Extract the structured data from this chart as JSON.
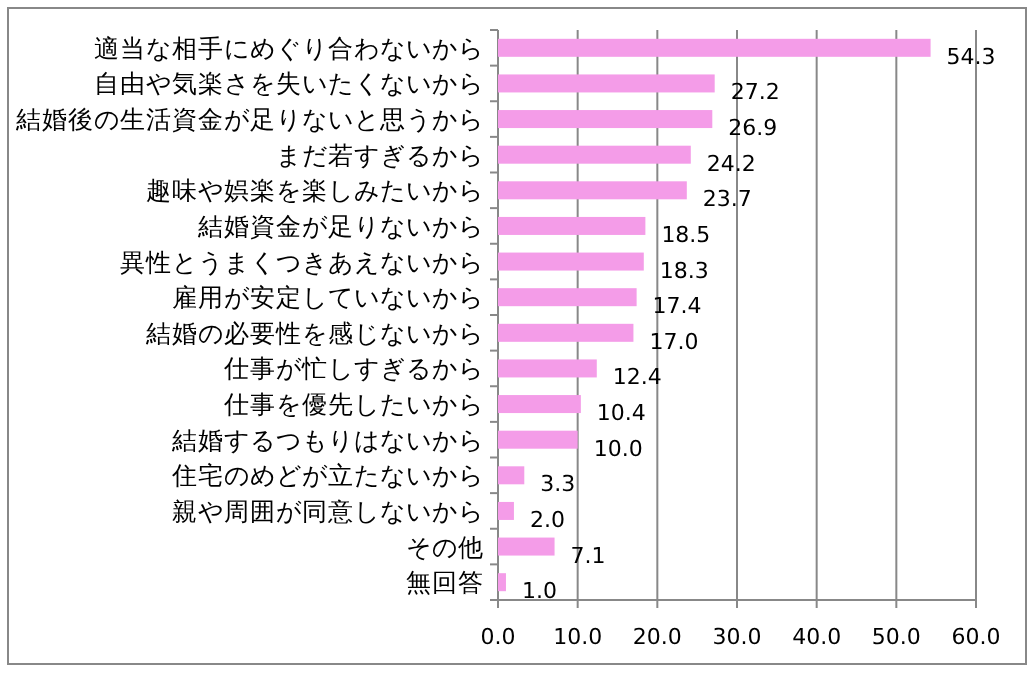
{
  "chart_data": {
    "type": "bar",
    "orientation": "horizontal",
    "categories": [
      "適当な相手にめぐり合わないから",
      "自由や気楽さを失いたくないから",
      "結婚後の生活資金が足りないと思うから",
      "まだ若すぎるから",
      "趣味や娯楽を楽しみたいから",
      "結婚資金が足りないから",
      "異性とうまくつきあえないから",
      "雇用が安定していないから",
      "結婚の必要性を感じないから",
      "仕事が忙しすぎるから",
      "仕事を優先したいから",
      "結婚するつもりはないから",
      "住宅のめどが立たないから",
      "親や周囲が同意しないから",
      "その他",
      "無回答"
    ],
    "values": [
      54.3,
      27.2,
      26.9,
      24.2,
      23.7,
      18.5,
      18.3,
      17.4,
      17.0,
      12.4,
      10.4,
      10.0,
      3.3,
      2.0,
      7.1,
      1.0
    ],
    "value_labels": [
      "54.3",
      "27.2",
      "26.9",
      "24.2",
      "23.7",
      "18.5",
      "18.3",
      "17.4",
      "17.0",
      "12.4",
      "10.4",
      "10.0",
      "3.3",
      "2.0",
      "7.1",
      "1.0"
    ],
    "color": "#f49ce8",
    "xlim": [
      0,
      60
    ],
    "xticks": [
      {
        "value": 0,
        "label": "0.0"
      },
      {
        "value": 10,
        "label": "10.0"
      },
      {
        "value": 20,
        "label": "20.0"
      },
      {
        "value": 30,
        "label": "30.0"
      },
      {
        "value": 40,
        "label": "40.0"
      },
      {
        "value": 50,
        "label": "50.0"
      },
      {
        "value": 60,
        "label": "60.0"
      }
    ],
    "grid": "x"
  }
}
